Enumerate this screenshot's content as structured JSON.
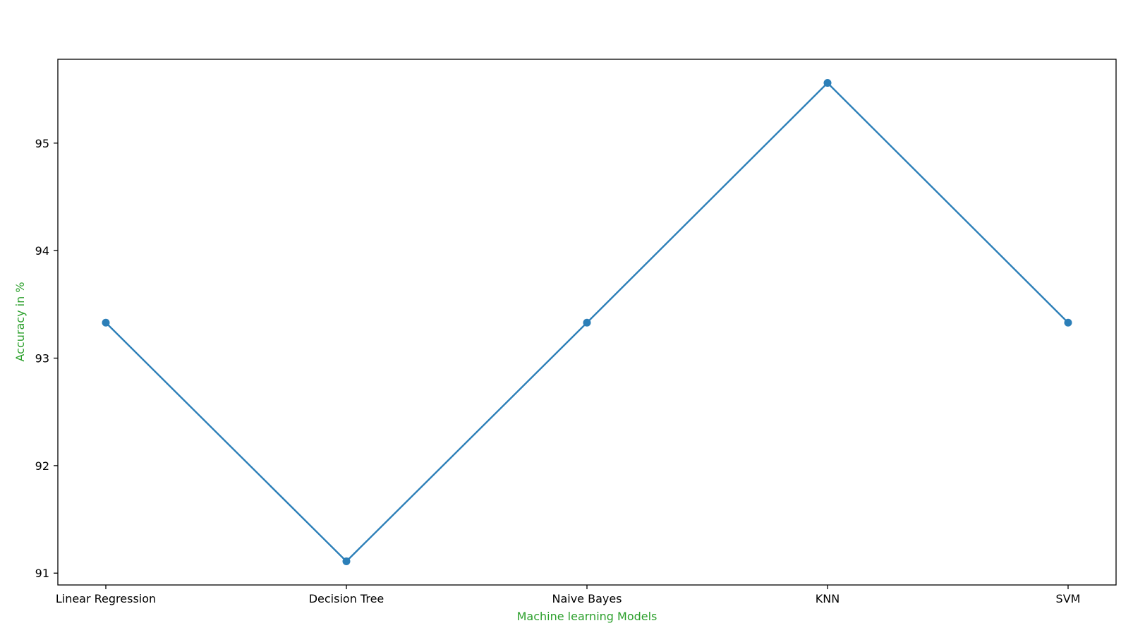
{
  "chart_data": {
    "type": "line",
    "title": "",
    "xlabel": "Machine learning Models",
    "ylabel": "Accuracy in %",
    "categories": [
      "Linear Regression",
      "Decision Tree",
      "Naive Bayes",
      "KNN",
      "SVM"
    ],
    "series": [
      {
        "values": [
          93.33,
          91.11,
          93.33,
          95.56,
          93.33
        ],
        "color": "#2c7fb8",
        "marker": "circle"
      }
    ],
    "yticks": [
      91,
      92,
      93,
      94,
      95
    ],
    "ylim": [
      90.89,
      95.78
    ],
    "grid": false,
    "legend": "none",
    "label_color": "#2ca02c"
  }
}
